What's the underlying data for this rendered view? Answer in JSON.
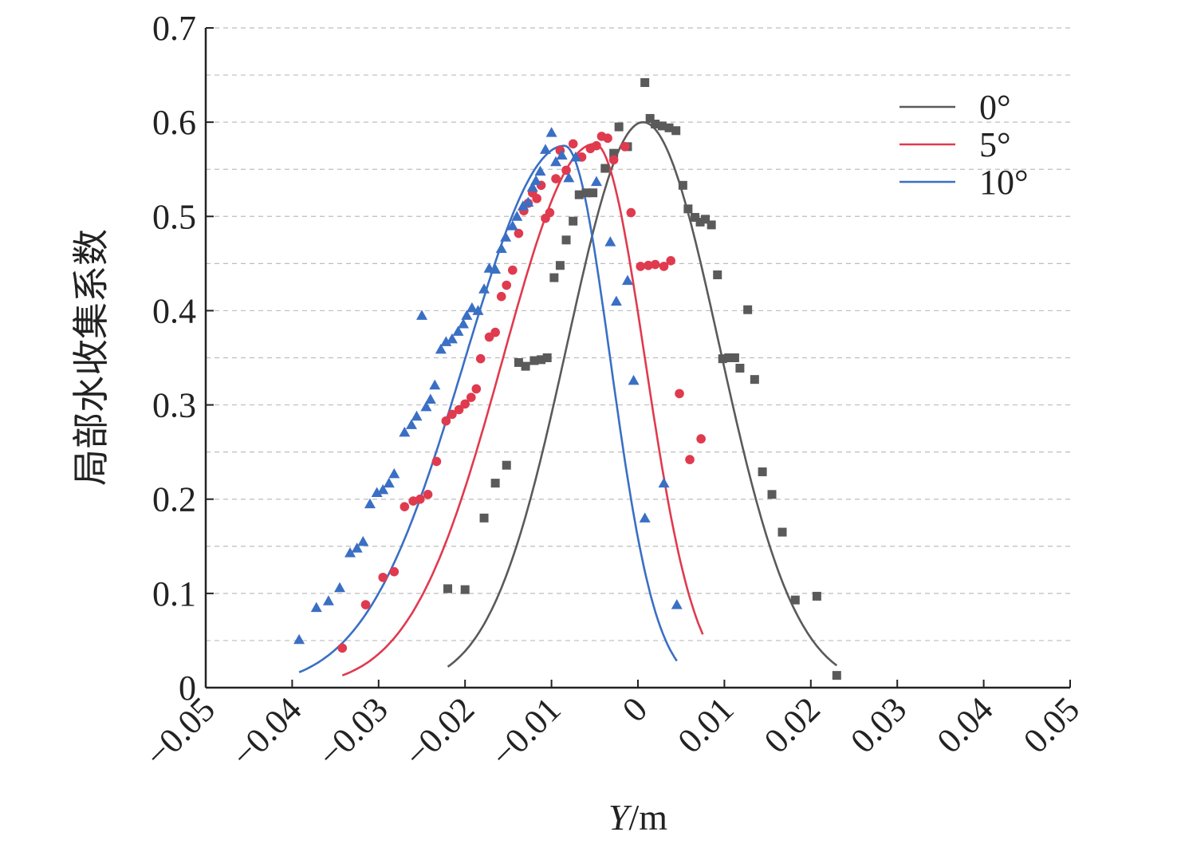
{
  "chart_data": {
    "type": "scatter",
    "title": "",
    "xlabel_italic": "Y",
    "xlabel_unit": "/m",
    "ylabel": "局部水收集系数",
    "xlim": [
      -0.05,
      0.05
    ],
    "ylim": [
      0,
      0.7
    ],
    "x_ticks": [
      "−0.05",
      "−0.04",
      "−0.03",
      "−0.02",
      "−0.01",
      "0",
      "0.01",
      "0.02",
      "0.03",
      "0.04",
      "0.05"
    ],
    "y_ticks": [
      "0",
      "0.1",
      "0.2",
      "0.3",
      "0.4",
      "0.5",
      "0.6",
      "0.7"
    ],
    "grid": "horizontal dashed",
    "legend_position": "top-right",
    "series": [
      {
        "name": "0°",
        "color": "#5a5a5a",
        "marker": "square",
        "fit": {
          "peak": 0.6,
          "center": 0.0006,
          "sigma": 0.0088,
          "x_range": [
            -0.022,
            0.023
          ]
        },
        "points": [
          [
            -0.022,
            0.105
          ],
          [
            -0.02,
            0.104
          ],
          [
            -0.0178,
            0.18
          ],
          [
            -0.0165,
            0.217
          ],
          [
            -0.0152,
            0.236
          ],
          [
            -0.0138,
            0.345
          ],
          [
            -0.013,
            0.341
          ],
          [
            -0.012,
            0.347
          ],
          [
            -0.0112,
            0.348
          ],
          [
            -0.0105,
            0.35
          ],
          [
            -0.0097,
            0.435
          ],
          [
            -0.009,
            0.448
          ],
          [
            -0.0083,
            0.475
          ],
          [
            -0.0075,
            0.495
          ],
          [
            -0.0068,
            0.523
          ],
          [
            -0.006,
            0.525
          ],
          [
            -0.0052,
            0.525
          ],
          [
            -0.0038,
            0.551
          ],
          [
            -0.0028,
            0.567
          ],
          [
            -0.0022,
            0.595
          ],
          [
            -0.0012,
            0.574
          ],
          [
            0.0008,
            0.642
          ],
          [
            0.0014,
            0.604
          ],
          [
            0.002,
            0.598
          ],
          [
            0.0028,
            0.596
          ],
          [
            0.0036,
            0.594
          ],
          [
            0.0044,
            0.591
          ],
          [
            0.0052,
            0.533
          ],
          [
            0.0058,
            0.508
          ],
          [
            0.0066,
            0.499
          ],
          [
            0.0072,
            0.494
          ],
          [
            0.0078,
            0.497
          ],
          [
            0.0085,
            0.491
          ],
          [
            0.0092,
            0.438
          ],
          [
            0.0098,
            0.349
          ],
          [
            0.0105,
            0.35
          ],
          [
            0.0112,
            0.35
          ],
          [
            0.0118,
            0.339
          ],
          [
            0.0127,
            0.401
          ],
          [
            0.0135,
            0.327
          ],
          [
            0.0144,
            0.229
          ],
          [
            0.0155,
            0.205
          ],
          [
            0.0167,
            0.165
          ],
          [
            0.0182,
            0.093
          ],
          [
            0.0207,
            0.097
          ],
          [
            0.023,
            0.013
          ]
        ]
      },
      {
        "name": "5°",
        "color": "#e03a4e",
        "marker": "circle",
        "fit": {
          "peak": 0.577,
          "center": -0.005,
          "sigma": 0.0106,
          "sigma_right": 0.0058,
          "x_range": [
            -0.0342,
            0.0075
          ]
        },
        "points": [
          [
            -0.0342,
            0.042
          ],
          [
            -0.0315,
            0.088
          ],
          [
            -0.0295,
            0.117
          ],
          [
            -0.0282,
            0.123
          ],
          [
            -0.027,
            0.192
          ],
          [
            -0.026,
            0.198
          ],
          [
            -0.0252,
            0.2
          ],
          [
            -0.0243,
            0.205
          ],
          [
            -0.0233,
            0.24
          ],
          [
            -0.0222,
            0.283
          ],
          [
            -0.0215,
            0.29
          ],
          [
            -0.0207,
            0.295
          ],
          [
            -0.02,
            0.301
          ],
          [
            -0.0193,
            0.308
          ],
          [
            -0.0187,
            0.317
          ],
          [
            -0.0182,
            0.349
          ],
          [
            -0.0172,
            0.372
          ],
          [
            -0.0165,
            0.377
          ],
          [
            -0.0158,
            0.415
          ],
          [
            -0.0152,
            0.427
          ],
          [
            -0.0145,
            0.443
          ],
          [
            -0.0138,
            0.482
          ],
          [
            -0.0132,
            0.506
          ],
          [
            -0.0127,
            0.514
          ],
          [
            -0.0122,
            0.525
          ],
          [
            -0.0117,
            0.519
          ],
          [
            -0.0112,
            0.533
          ],
          [
            -0.0107,
            0.498
          ],
          [
            -0.0102,
            0.504
          ],
          [
            -0.0095,
            0.54
          ],
          [
            -0.009,
            0.57
          ],
          [
            -0.0083,
            0.549
          ],
          [
            -0.0075,
            0.577
          ],
          [
            -0.0065,
            0.563
          ],
          [
            -0.0055,
            0.572
          ],
          [
            -0.0048,
            0.575
          ],
          [
            -0.0042,
            0.585
          ],
          [
            -0.0035,
            0.583
          ],
          [
            -0.0028,
            0.56
          ],
          [
            -0.0015,
            0.574
          ],
          [
            -0.0008,
            0.504
          ],
          [
            0.0003,
            0.447
          ],
          [
            0.0012,
            0.448
          ],
          [
            0.002,
            0.449
          ],
          [
            0.003,
            0.447
          ],
          [
            0.0038,
            0.453
          ],
          [
            0.0048,
            0.312
          ],
          [
            0.006,
            0.242
          ],
          [
            0.0073,
            0.264
          ]
        ]
      },
      {
        "name": "10°",
        "color": "#3a6fc4",
        "marker": "triangle",
        "fit": {
          "peak": 0.575,
          "center": -0.0085,
          "sigma": 0.0115,
          "sigma_right": 0.0053,
          "x_range": [
            -0.0392,
            0.0045
          ]
        },
        "points": [
          [
            -0.0392,
            0.051
          ],
          [
            -0.0372,
            0.085
          ],
          [
            -0.0358,
            0.092
          ],
          [
            -0.0345,
            0.106
          ],
          [
            -0.0333,
            0.143
          ],
          [
            -0.0325,
            0.148
          ],
          [
            -0.0318,
            0.155
          ],
          [
            -0.031,
            0.195
          ],
          [
            -0.0302,
            0.207
          ],
          [
            -0.0295,
            0.21
          ],
          [
            -0.0288,
            0.217
          ],
          [
            -0.0282,
            0.227
          ],
          [
            -0.027,
            0.271
          ],
          [
            -0.0262,
            0.279
          ],
          [
            -0.0256,
            0.288
          ],
          [
            -0.025,
            0.395
          ],
          [
            -0.0245,
            0.298
          ],
          [
            -0.024,
            0.306
          ],
          [
            -0.0235,
            0.321
          ],
          [
            -0.0228,
            0.359
          ],
          [
            -0.0222,
            0.367
          ],
          [
            -0.0215,
            0.37
          ],
          [
            -0.0208,
            0.378
          ],
          [
            -0.0202,
            0.386
          ],
          [
            -0.0198,
            0.395
          ],
          [
            -0.0192,
            0.403
          ],
          [
            -0.0185,
            0.4
          ],
          [
            -0.0178,
            0.423
          ],
          [
            -0.0172,
            0.445
          ],
          [
            -0.0165,
            0.444
          ],
          [
            -0.0158,
            0.466
          ],
          [
            -0.0153,
            0.478
          ],
          [
            -0.0145,
            0.49
          ],
          [
            -0.014,
            0.5
          ],
          [
            -0.0133,
            0.511
          ],
          [
            -0.0127,
            0.515
          ],
          [
            -0.0122,
            0.531
          ],
          [
            -0.0118,
            0.538
          ],
          [
            -0.0113,
            0.548
          ],
          [
            -0.0107,
            0.571
          ],
          [
            -0.01,
            0.589
          ],
          [
            -0.0095,
            0.558
          ],
          [
            -0.0088,
            0.565
          ],
          [
            -0.008,
            0.541
          ],
          [
            -0.0072,
            0.563
          ],
          [
            -0.0048,
            0.537
          ],
          [
            -0.0032,
            0.473
          ],
          [
            -0.0025,
            0.41
          ],
          [
            -0.0012,
            0.432
          ],
          [
            -0.0005,
            0.326
          ],
          [
            0.0008,
            0.18
          ],
          [
            0.003,
            0.217
          ],
          [
            0.0045,
            0.088
          ]
        ]
      }
    ]
  }
}
